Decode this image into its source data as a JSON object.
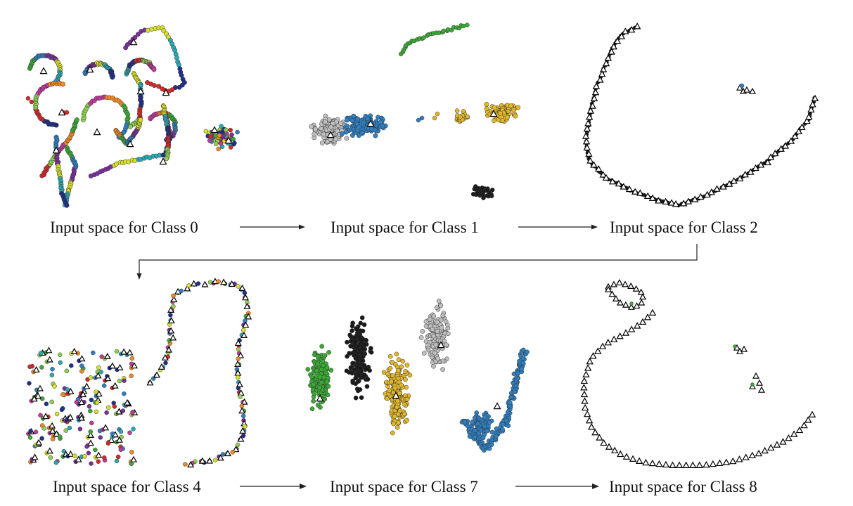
{
  "captions": [
    "Input space for Class 0",
    "Input space for Class 1",
    "Input space for Class 2",
    "Input space for Class 4",
    "Input space for Class 7",
    "Input space for Class 8"
  ],
  "colors": {
    "green": "#3aaa35",
    "blue": "#2f7fc1",
    "gray": "#bfbfbf",
    "gold": "#e2b72a",
    "black": "#1a1a1a",
    "red": "#d42a2a",
    "purple": "#7b2f9c",
    "cyan": "#2aa9b5",
    "yellow": "#d8e02b",
    "navy": "#1f2f8a",
    "lime": "#8fd14f",
    "magenta": "#c23a9a",
    "orange": "#f08a24"
  }
}
